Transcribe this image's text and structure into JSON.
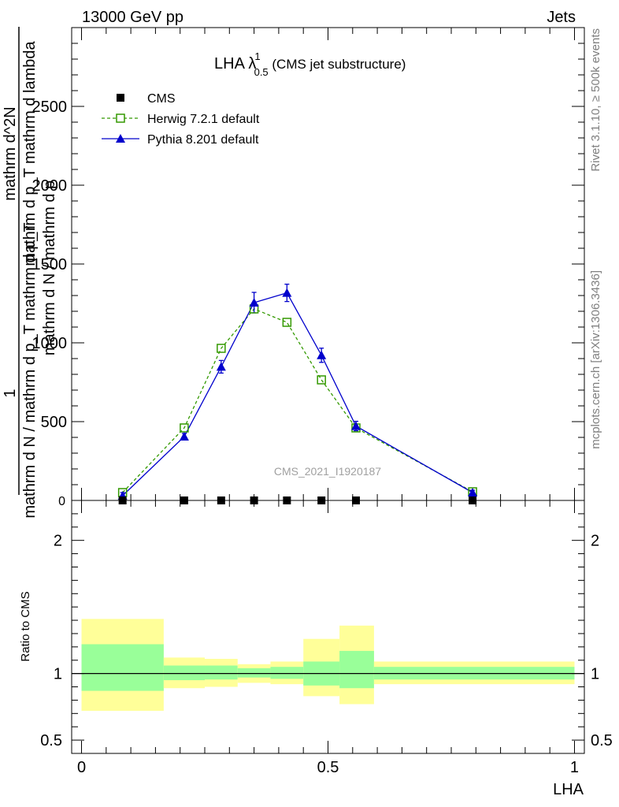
{
  "header": {
    "left": "13000 GeV pp",
    "right": "Jets"
  },
  "side_text": {
    "rivet": "Rivet 3.1.10, ≥ 500k events",
    "mcplots": "mcplots.cern.ch [arXiv:1306.3436]"
  },
  "plot_title": {
    "main": "LHA λ",
    "sup": "1",
    "sub": "0.5",
    "suffix": " (CMS jet substructure)"
  },
  "watermark": "CMS_2021_I1920187",
  "ylabel_top": {
    "num": "1",
    "den_line1": "mathrm d N / mathrm d p_T mathrm d p_T",
    "den_line2": "mathrm d N / mathrm d p",
    "frac_num": "mathrm d^2N",
    "frac_den": "mathrm d p_T mathrm d lambda"
  },
  "ylabel_top_lines": [
    "mathrm d^2N",
    "mathrm d p_T mathrm d lambda",
    "mathrm d N / mathrm d p_T mathrm d p_T"
  ],
  "ylabel_ratio": "Ratio to CMS",
  "xlabel": "LHA",
  "chart_data": [
    {
      "type": "line",
      "xlim": [
        -0.02,
        1.02
      ],
      "ylim": [
        0,
        3000
      ],
      "yticks": [
        500,
        1000,
        1500,
        2000,
        2500
      ],
      "ytick_labels": [
        "500",
        "1000",
        "1500",
        "2000",
        "2500"
      ],
      "legend": "top-left",
      "series": [
        {
          "name": "CMS",
          "color": "#000000",
          "marker": "square-filled",
          "x": [
            0.0833,
            0.2083,
            0.2833,
            0.35,
            0.4167,
            0.4867,
            0.5567,
            0.7933
          ],
          "y": [
            0,
            0,
            0,
            0,
            0,
            0,
            0,
            0
          ]
        },
        {
          "name": "Herwig 7.2.1 default",
          "color": "#339900",
          "marker": "square-open",
          "dash": true,
          "x": [
            0.0833,
            0.2083,
            0.2833,
            0.35,
            0.4167,
            0.4867,
            0.5567,
            0.7933
          ],
          "y": [
            50,
            460,
            965,
            1215,
            1130,
            765,
            460,
            55
          ]
        },
        {
          "name": "Pythia 8.201 default",
          "color": "#0000cc",
          "marker": "triangle-filled",
          "dash": false,
          "x": [
            0.0833,
            0.2083,
            0.2833,
            0.35,
            0.4167,
            0.4867,
            0.5567,
            0.7933
          ],
          "y": [
            30,
            405,
            848,
            1255,
            1317,
            921,
            472,
            50
          ],
          "err": [
            20,
            20,
            40,
            65,
            55,
            45,
            30,
            15
          ]
        }
      ]
    },
    {
      "type": "area",
      "xlim": [
        -0.02,
        1.02
      ],
      "ylim": [
        0.4,
        2.3
      ],
      "yticks": [
        0.5,
        1,
        2
      ],
      "ytick_labels": [
        "0.5",
        "1",
        "2"
      ],
      "xticks": [
        0,
        0.5,
        1
      ],
      "xtick_labels": [
        "0",
        "0.5",
        "1"
      ],
      "reference_line": 1,
      "bands": {
        "edges": [
          0,
          0.1667,
          0.25,
          0.3167,
          0.3833,
          0.45,
          0.5233,
          0.5933,
          1.0
        ],
        "yellow_lo": [
          0.72,
          0.89,
          0.9,
          0.93,
          0.92,
          0.83,
          0.77,
          0.92
        ],
        "yellow_hi": [
          1.41,
          1.12,
          1.11,
          1.07,
          1.09,
          1.26,
          1.36,
          1.09
        ],
        "green_lo": [
          0.87,
          0.95,
          0.955,
          0.97,
          0.96,
          0.91,
          0.89,
          0.955
        ],
        "green_hi": [
          1.22,
          1.06,
          1.06,
          1.04,
          1.05,
          1.09,
          1.17,
          1.05
        ]
      }
    }
  ],
  "colors": {
    "yellow_band": "#ffff99",
    "green_band": "#99ff99",
    "herwig": "#339900",
    "pythia": "#0000cc",
    "cms": "#000000"
  }
}
